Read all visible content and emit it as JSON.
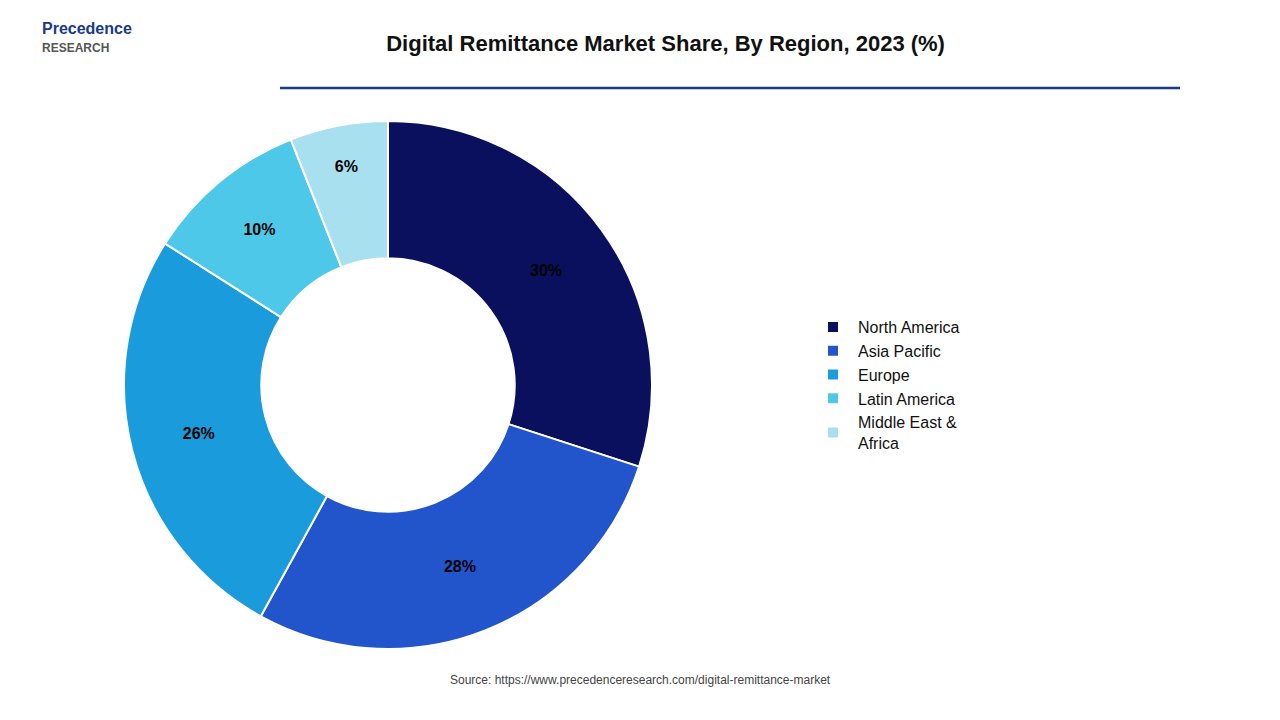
{
  "chart_data": {
    "type": "donut",
    "title": "Digital Remittance Market Share, By Region, 2023 (%)",
    "categories": [
      "North America",
      "Asia Pacific",
      "Europe",
      "Latin America",
      "Middle East &\nAfrica"
    ],
    "values": [
      30,
      28,
      26,
      10,
      6
    ],
    "value_labels": [
      "30%",
      "28%",
      "26%",
      "10%",
      "6%"
    ],
    "colors": [
      "#0a0f5e",
      "#2255cc",
      "#1a9bdc",
      "#4dc8e8",
      "#a8e0f0"
    ],
    "data_labels": true,
    "legend": "right",
    "annotations": [
      "Source: https://www.precedenceresearch.com/digital-remittance-market",
      "Precedence",
      "RESEARCH"
    ]
  }
}
